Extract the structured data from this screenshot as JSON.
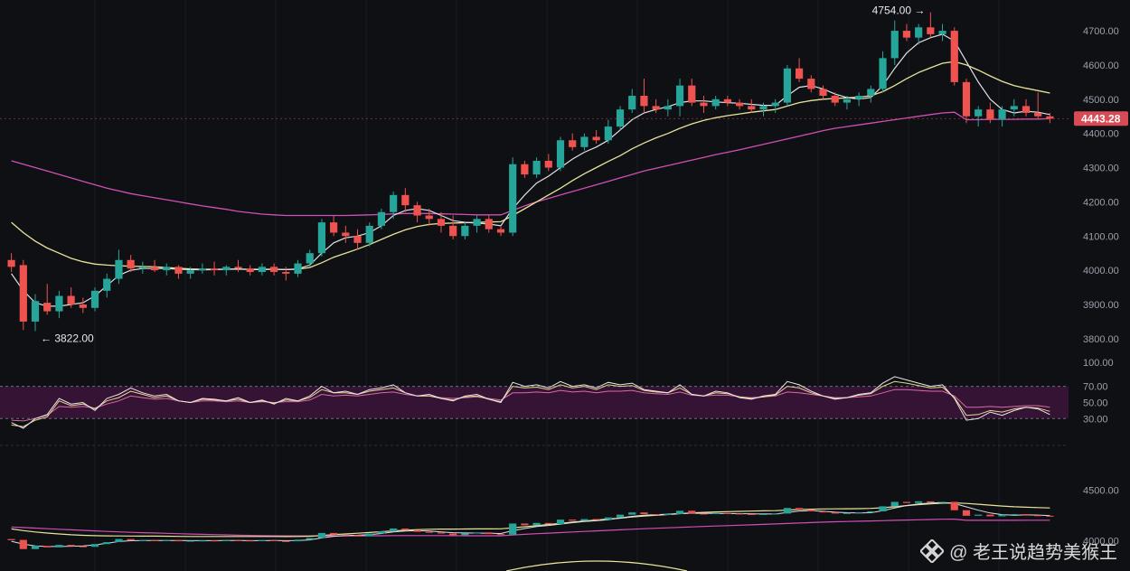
{
  "chart_data": {
    "type": "candlestick",
    "price_panel": {
      "ylim": [
        3760,
        4790
      ],
      "ticks": [
        "4700.00",
        "4600.00",
        "4500.00",
        "4400.00",
        "4300.00",
        "4200.00",
        "4100.00",
        "4000.00",
        "3900.00",
        "3800.00"
      ],
      "last_price": "4443.28",
      "high_label": "4754.00",
      "low_label": "3822.00",
      "up_color": "#26a69a",
      "down_color": "#ef5350",
      "last_price_color": "#d84a55",
      "candles": [
        [
          4030,
          4050,
          3995,
          4010
        ],
        [
          4015,
          4030,
          3825,
          3850
        ],
        [
          3850,
          3930,
          3822,
          3910
        ],
        [
          3905,
          3960,
          3870,
          3880
        ],
        [
          3880,
          3940,
          3860,
          3925
        ],
        [
          3925,
          3950,
          3890,
          3900
        ],
        [
          3900,
          3920,
          3875,
          3890
        ],
        [
          3890,
          3950,
          3880,
          3940
        ],
        [
          3940,
          3990,
          3920,
          3975
        ],
        [
          3975,
          4060,
          3960,
          4030
        ],
        [
          4030,
          4045,
          3995,
          4005
        ],
        [
          4005,
          4025,
          3990,
          4010
        ],
        [
          4010,
          4030,
          3995,
          4000
        ],
        [
          4000,
          4020,
          3985,
          4010
        ],
        [
          4010,
          4015,
          3975,
          3990
        ],
        [
          3990,
          4010,
          3975,
          4000
        ],
        [
          4000,
          4020,
          3990,
          4005
        ],
        [
          4005,
          4025,
          3985,
          4000
        ],
        [
          4000,
          4015,
          3985,
          4010
        ],
        [
          4010,
          4030,
          3995,
          4005
        ],
        [
          4005,
          4015,
          3985,
          3995
        ],
        [
          3995,
          4020,
          3985,
          4010
        ],
        [
          4010,
          4020,
          3985,
          3995
        ],
        [
          3995,
          4010,
          3970,
          3990
        ],
        [
          3990,
          4030,
          3980,
          4020
        ],
        [
          4020,
          4060,
          4010,
          4050
        ],
        [
          4050,
          4150,
          4040,
          4140
        ],
        [
          4140,
          4160,
          4100,
          4110
        ],
        [
          4110,
          4130,
          4080,
          4100
        ],
        [
          4100,
          4120,
          4060,
          4080
        ],
        [
          4080,
          4140,
          4070,
          4130
        ],
        [
          4130,
          4180,
          4120,
          4170
        ],
        [
          4170,
          4230,
          4150,
          4220
        ],
        [
          4220,
          4240,
          4170,
          4190
        ],
        [
          4190,
          4200,
          4140,
          4160
        ],
        [
          4160,
          4180,
          4130,
          4150
        ],
        [
          4150,
          4170,
          4110,
          4130
        ],
        [
          4130,
          4160,
          4090,
          4100
        ],
        [
          4100,
          4140,
          4090,
          4130
        ],
        [
          4130,
          4160,
          4110,
          4150
        ],
        [
          4150,
          4160,
          4110,
          4120
        ],
        [
          4120,
          4130,
          4100,
          4110
        ],
        [
          4110,
          4330,
          4100,
          4310
        ],
        [
          4310,
          4320,
          4270,
          4280
        ],
        [
          4280,
          4330,
          4270,
          4320
        ],
        [
          4320,
          4340,
          4290,
          4300
        ],
        [
          4300,
          4390,
          4290,
          4380
        ],
        [
          4380,
          4400,
          4350,
          4360
        ],
        [
          4360,
          4400,
          4350,
          4390
        ],
        [
          4390,
          4410,
          4370,
          4380
        ],
        [
          4380,
          4440,
          4370,
          4420
        ],
        [
          4420,
          4480,
          4410,
          4470
        ],
        [
          4470,
          4530,
          4460,
          4510
        ],
        [
          4510,
          4560,
          4460,
          4480
        ],
        [
          4480,
          4500,
          4460,
          4470
        ],
        [
          4470,
          4500,
          4450,
          4480
        ],
        [
          4480,
          4560,
          4450,
          4540
        ],
        [
          4540,
          4560,
          4480,
          4490
        ],
        [
          4490,
          4510,
          4460,
          4480
        ],
        [
          4480,
          4510,
          4470,
          4500
        ],
        [
          4500,
          4510,
          4480,
          4490
        ],
        [
          4490,
          4500,
          4470,
          4480
        ],
        [
          4480,
          4500,
          4460,
          4470
        ],
        [
          4470,
          4490,
          4450,
          4480
        ],
        [
          4480,
          4500,
          4460,
          4490
        ],
        [
          4490,
          4600,
          4480,
          4590
        ],
        [
          4590,
          4620,
          4550,
          4560
        ],
        [
          4560,
          4570,
          4520,
          4530
        ],
        [
          4530,
          4540,
          4500,
          4510
        ],
        [
          4510,
          4520,
          4480,
          4490
        ],
        [
          4490,
          4510,
          4470,
          4500
        ],
        [
          4500,
          4520,
          4480,
          4510
        ],
        [
          4510,
          4540,
          4490,
          4530
        ],
        [
          4530,
          4640,
          4520,
          4620
        ],
        [
          4620,
          4730,
          4600,
          4700
        ],
        [
          4700,
          4720,
          4670,
          4680
        ],
        [
          4680,
          4720,
          4660,
          4710
        ],
        [
          4710,
          4754,
          4680,
          4690
        ],
        [
          4690,
          4720,
          4670,
          4700
        ],
        [
          4700,
          4710,
          4540,
          4550
        ],
        [
          4550,
          4560,
          4430,
          4450
        ],
        [
          4450,
          4480,
          4420,
          4470
        ],
        [
          4470,
          4490,
          4430,
          4440
        ],
        [
          4440,
          4480,
          4420,
          4470
        ],
        [
          4470,
          4500,
          4450,
          4480
        ],
        [
          4480,
          4500,
          4450,
          4460
        ],
        [
          4460,
          4520,
          4440,
          4450
        ],
        [
          4450,
          4460,
          4430,
          4443
        ]
      ],
      "ma_fast": [
        3990,
        3940,
        3905,
        3895,
        3895,
        3900,
        3905,
        3925,
        3955,
        3985,
        4000,
        4005,
        4005,
        4005,
        4003,
        4002,
        4001,
        4002,
        4003,
        4004,
        4002,
        4002,
        4003,
        4002,
        4004,
        4015,
        4050,
        4080,
        4095,
        4100,
        4110,
        4130,
        4160,
        4175,
        4180,
        4175,
        4160,
        4145,
        4140,
        4138,
        4135,
        4130,
        4180,
        4220,
        4255,
        4275,
        4300,
        4325,
        4345,
        4360,
        4380,
        4410,
        4440,
        4460,
        4470,
        4478,
        4490,
        4495,
        4495,
        4492,
        4490,
        4488,
        4485,
        4482,
        4482,
        4510,
        4535,
        4540,
        4530,
        4515,
        4505,
        4500,
        4505,
        4540,
        4590,
        4635,
        4665,
        4680,
        4690,
        4670,
        4610,
        4550,
        4500,
        4470,
        4460,
        4465,
        4462,
        4455
      ],
      "ma_mid": [
        4140,
        4110,
        4085,
        4065,
        4050,
        4035,
        4025,
        4018,
        4015,
        4013,
        4012,
        4011,
        4010,
        4008,
        4006,
        4004,
        4003,
        4003,
        4003,
        4003,
        4003,
        4003,
        4003,
        4002,
        4003,
        4008,
        4022,
        4038,
        4050,
        4062,
        4075,
        4090,
        4105,
        4118,
        4128,
        4134,
        4137,
        4138,
        4139,
        4140,
        4141,
        4142,
        4160,
        4180,
        4200,
        4220,
        4240,
        4262,
        4282,
        4300,
        4318,
        4335,
        4355,
        4372,
        4387,
        4400,
        4415,
        4428,
        4438,
        4446,
        4452,
        4457,
        4462,
        4466,
        4470,
        4480,
        4490,
        4496,
        4500,
        4502,
        4504,
        4506,
        4510,
        4522,
        4540,
        4560,
        4578,
        4592,
        4605,
        4610,
        4600,
        4585,
        4568,
        4552,
        4540,
        4532,
        4525,
        4518
      ],
      "ma_slow": [
        4320,
        4310,
        4300,
        4290,
        4280,
        4270,
        4260,
        4250,
        4240,
        4232,
        4224,
        4218,
        4212,
        4206,
        4200,
        4194,
        4188,
        4183,
        4178,
        4172,
        4168,
        4164,
        4162,
        4160,
        4160,
        4160,
        4160,
        4160,
        4160,
        4161,
        4162,
        4163,
        4165,
        4166,
        4166,
        4166,
        4165,
        4164,
        4163,
        4162,
        4162,
        4162,
        4175,
        4188,
        4200,
        4210,
        4220,
        4230,
        4240,
        4250,
        4260,
        4270,
        4280,
        4290,
        4298,
        4306,
        4314,
        4322,
        4330,
        4338,
        4345,
        4352,
        4360,
        4368,
        4376,
        4384,
        4392,
        4400,
        4408,
        4415,
        4420,
        4425,
        4430,
        4435,
        4440,
        4445,
        4450,
        4455,
        4460,
        4462,
        4440,
        4440,
        4441,
        4441,
        4441,
        4442,
        4442,
        4443
      ]
    },
    "rsi_panel": {
      "ticks": [
        "100.00",
        "70.00",
        "50.00",
        "30.00"
      ],
      "band": [
        30,
        70
      ],
      "band_color": "#3a1437",
      "rsi_a": [
        25,
        18,
        30,
        35,
        55,
        48,
        50,
        40,
        55,
        60,
        68,
        62,
        58,
        60,
        52,
        50,
        55,
        54,
        52,
        56,
        50,
        53,
        48,
        55,
        52,
        58,
        70,
        62,
        64,
        60,
        66,
        68,
        72,
        62,
        58,
        60,
        55,
        52,
        58,
        60,
        54,
        50,
        75,
        70,
        72,
        68,
        76,
        70,
        72,
        68,
        75,
        72,
        74,
        66,
        64,
        62,
        72,
        60,
        58,
        64,
        62,
        56,
        54,
        58,
        60,
        76,
        72,
        64,
        58,
        54,
        56,
        60,
        62,
        74,
        82,
        78,
        74,
        70,
        72,
        55,
        28,
        30,
        38,
        34,
        40,
        44,
        42,
        35
      ],
      "rsi_b": [
        22,
        20,
        28,
        32,
        52,
        46,
        48,
        42,
        52,
        56,
        64,
        60,
        56,
        58,
        52,
        50,
        54,
        53,
        52,
        54,
        50,
        52,
        49,
        53,
        52,
        56,
        66,
        62,
        62,
        60,
        64,
        66,
        68,
        62,
        58,
        58,
        55,
        53,
        57,
        58,
        54,
        51,
        70,
        68,
        69,
        66,
        72,
        68,
        70,
        66,
        72,
        70,
        71,
        65,
        63,
        62,
        68,
        60,
        58,
        62,
        61,
        57,
        55,
        57,
        59,
        70,
        68,
        62,
        58,
        55,
        56,
        59,
        61,
        70,
        76,
        74,
        71,
        68,
        69,
        56,
        34,
        35,
        40,
        38,
        42,
        44,
        43,
        39
      ],
      "rsi_c": [
        28,
        27,
        30,
        34,
        45,
        44,
        45,
        43,
        48,
        52,
        58,
        56,
        54,
        55,
        52,
        50,
        52,
        52,
        51,
        52,
        50,
        51,
        50,
        51,
        51,
        53,
        60,
        58,
        59,
        58,
        60,
        62,
        63,
        60,
        58,
        58,
        56,
        55,
        56,
        57,
        55,
        53,
        62,
        62,
        63,
        62,
        65,
        63,
        64,
        62,
        64,
        64,
        65,
        62,
        61,
        60,
        63,
        59,
        58,
        59,
        59,
        57,
        56,
        57,
        58,
        63,
        62,
        60,
        58,
        56,
        56,
        57,
        58,
        62,
        66,
        66,
        65,
        64,
        64,
        58,
        44,
        44,
        45,
        44,
        45,
        46,
        46,
        44
      ]
    },
    "mini_panel": {
      "ticks": [
        "4500.00",
        "4000.00"
      ],
      "ylim": [
        3700,
        4900
      ]
    }
  },
  "watermark": {
    "text": "@ 老王说趋势美猴王",
    "logo_icon": "binance-square-icon"
  }
}
